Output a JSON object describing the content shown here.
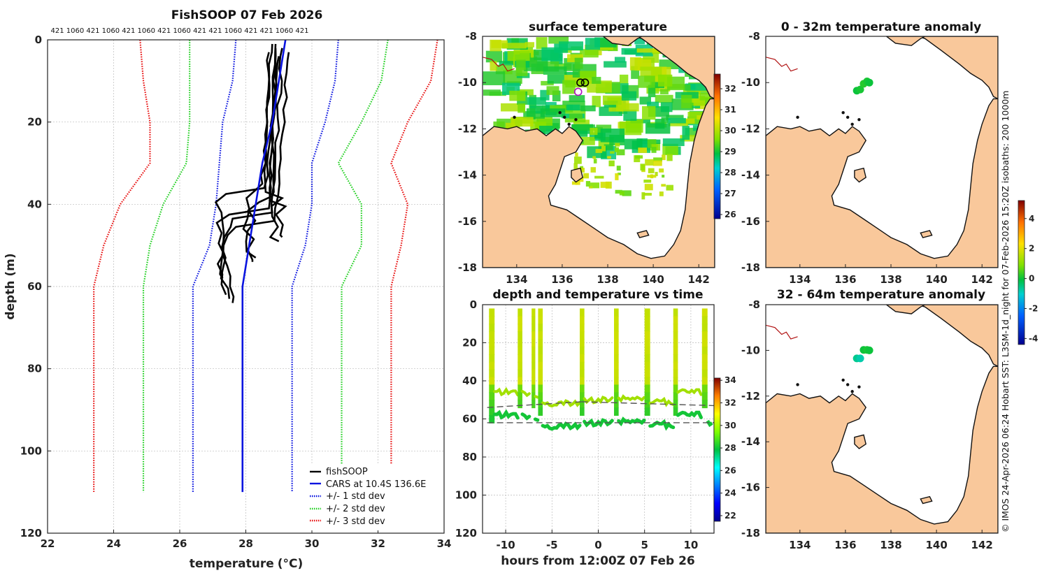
{
  "chart_data": [
    {
      "type": "line",
      "id": "profile",
      "title": "FishSOOP 07 Feb 2026",
      "top_labels": "421 1060 421 1060 421 1060 421 1060 421 421 1060 421 421 1060 421",
      "xlabel": "temperature",
      "xlabel_unit": "(°C)",
      "ylabel": "depth (m)",
      "xlim": [
        22,
        34
      ],
      "ylim": [
        0,
        120
      ],
      "xticks": [
        22,
        24,
        26,
        28,
        30,
        32,
        34
      ],
      "yticks": [
        0,
        20,
        40,
        60,
        80,
        100,
        120
      ],
      "series": [
        {
          "name": "fishSOOP",
          "color": "#000000",
          "style": "solid",
          "profiles": [
            {
              "surface_temp": 28.9,
              "mixed_temp": 28.7,
              "thermo_depth": 41,
              "bottom_temp": 27.2,
              "bottom_depth": 62
            },
            {
              "surface_temp": 29.1,
              "mixed_temp": 28.8,
              "thermo_depth": 42,
              "bottom_temp": 27.3,
              "bottom_depth": 63
            },
            {
              "surface_temp": 29.3,
              "mixed_temp": 28.9,
              "thermo_depth": 44,
              "bottom_temp": 27.4,
              "bottom_depth": 64
            },
            {
              "surface_temp": 29.0,
              "mixed_temp": 28.6,
              "thermo_depth": 36,
              "bottom_temp": 27.1,
              "bottom_depth": 58
            },
            {
              "surface_temp": 28.8,
              "mixed_temp": 28.5,
              "thermo_depth": 35,
              "bottom_temp": 28.0,
              "bottom_depth": 54
            },
            {
              "surface_temp": 28.9,
              "mixed_temp": 28.8,
              "thermo_depth": 38,
              "bottom_temp": 28.1,
              "bottom_depth": 53
            },
            {
              "surface_temp": 28.7,
              "mixed_temp": 28.6,
              "thermo_depth": 37,
              "bottom_temp": 28.8,
              "bottom_depth": 49
            },
            {
              "surface_temp": 29.0,
              "mixed_temp": 28.7,
              "thermo_depth": 39,
              "bottom_temp": 28.9,
              "bottom_depth": 48
            }
          ]
        },
        {
          "name": "CARS at 10.4S 136.6E",
          "color": "#0a14e0",
          "style": "solid",
          "x": [
            29.2,
            29.0,
            28.8,
            28.5,
            28.3,
            28.1,
            27.9,
            27.9
          ],
          "y": [
            0,
            10,
            20,
            30,
            40,
            50,
            60,
            110
          ]
        },
        {
          "name": "+/- 1 std dev",
          "color": "#0a14e0",
          "style": "dotted",
          "x_low": [
            27.7,
            27.6,
            27.3,
            27.2,
            27.1,
            26.9,
            26.4,
            26.4
          ],
          "x_high": [
            30.8,
            30.7,
            30.4,
            30.0,
            30.0,
            29.8,
            29.4,
            29.4
          ],
          "y": [
            0,
            10,
            20,
            30,
            40,
            50,
            60,
            110
          ]
        },
        {
          "name": "+/- 2 std dev",
          "color": "#22d022",
          "style": "dotted",
          "x_low": [
            26.3,
            26.3,
            26.3,
            26.2,
            25.5,
            25.1,
            24.9,
            24.9
          ],
          "x_high": [
            32.3,
            32.1,
            31.5,
            30.8,
            31.5,
            31.5,
            30.9,
            30.9
          ],
          "y": [
            0,
            10,
            20,
            30,
            40,
            50,
            60,
            110
          ]
        },
        {
          "name": "+/- 3 std dev",
          "color": "#e81010",
          "style": "dotted",
          "x_low": [
            24.8,
            24.9,
            25.1,
            25.1,
            24.2,
            23.7,
            23.4,
            23.4
          ],
          "x_high": [
            33.8,
            33.6,
            32.9,
            32.4,
            32.9,
            32.7,
            32.4,
            32.4
          ],
          "y": [
            0,
            10,
            20,
            30,
            40,
            50,
            60,
            110
          ]
        }
      ]
    },
    {
      "type": "heatmap",
      "id": "sst_map",
      "title": "surface temperature",
      "xlim": [
        132.5,
        142.7
      ],
      "ylim": [
        -18,
        -8
      ],
      "xticks": [
        134,
        136,
        138,
        140,
        142
      ],
      "yticks": [
        -8,
        -10,
        -12,
        -14,
        -16,
        -18
      ],
      "colorbar_ticks": [
        26,
        27,
        28,
        29,
        30,
        31,
        32
      ],
      "colorbar_range": [
        25.8,
        32.7
      ],
      "markers": [
        {
          "lon": 136.7,
          "lat": -10.4,
          "color": "#b010c0"
        },
        {
          "lon": 136.8,
          "lat": -10.0,
          "color": "#000000"
        },
        {
          "lon": 137.0,
          "lat": -10.0,
          "color": "#000000"
        }
      ]
    },
    {
      "type": "scatter",
      "id": "anom_0_32",
      "title": "0 - 32m temperature anomaly",
      "xlim": [
        132.5,
        142.7
      ],
      "ylim": [
        -18,
        -8
      ],
      "xticks": [
        134,
        136,
        138,
        140,
        142
      ],
      "yticks": [
        -8,
        -10,
        -12,
        -14,
        -16,
        -18
      ],
      "points": [
        {
          "lon": 136.5,
          "lat": -10.35,
          "value": 0.0
        },
        {
          "lon": 136.65,
          "lat": -10.3,
          "value": 0.1
        },
        {
          "lon": 136.8,
          "lat": -10.05,
          "value": 0.2
        },
        {
          "lon": 136.95,
          "lat": -9.95,
          "value": 0.1
        },
        {
          "lon": 137.05,
          "lat": -10.0,
          "value": 0.0
        }
      ]
    },
    {
      "type": "scatter",
      "id": "anom_32_64",
      "title": "32 - 64m temperature anomaly",
      "xlim": [
        132.5,
        142.7
      ],
      "ylim": [
        -18,
        -8
      ],
      "xticks": [
        134,
        136,
        138,
        140,
        142
      ],
      "yticks": [
        -8,
        -10,
        -12,
        -14,
        -16,
        -18
      ],
      "points": [
        {
          "lon": 136.5,
          "lat": -10.35,
          "value": -0.6
        },
        {
          "lon": 136.65,
          "lat": -10.35,
          "value": -0.8
        },
        {
          "lon": 136.8,
          "lat": -9.98,
          "value": 0.0
        },
        {
          "lon": 136.95,
          "lat": -9.98,
          "value": 0.1
        },
        {
          "lon": 137.05,
          "lat": -10.0,
          "value": 0.0
        }
      ]
    },
    {
      "type": "line",
      "id": "depth_time",
      "title": "depth and temperature vs time",
      "xlabel": "hours from 12:00Z 07 Feb 26",
      "xlim": [
        -12.5,
        12.5
      ],
      "ylim": [
        0,
        120
      ],
      "xticks": [
        -10,
        -5,
        0,
        5,
        10
      ],
      "yticks": [
        0,
        20,
        40,
        60,
        80,
        100,
        120
      ],
      "colorbar_ticks": [
        22,
        24,
        26,
        28,
        30,
        32,
        34
      ],
      "colorbar_range": [
        21.5,
        34.2
      ],
      "casts": [
        {
          "start": -11.8,
          "end": -11.2,
          "bottom_depth": 60
        },
        {
          "start": -8.7,
          "end": -8.2,
          "bottom_depth": 52
        },
        {
          "start": -7.2,
          "end": -6.8,
          "bottom_depth": 53
        },
        {
          "start": -6.5,
          "end": -6.0,
          "bottom_depth": 55
        },
        {
          "start": -2.0,
          "end": -1.5,
          "bottom_depth": 58
        },
        {
          "start": 1.7,
          "end": 2.2,
          "bottom_depth": 56
        },
        {
          "start": 5.0,
          "end": 5.6,
          "bottom_depth": 55
        },
        {
          "start": 8.1,
          "end": 8.6,
          "bottom_depth": 57
        },
        {
          "start": 11.2,
          "end": 11.8,
          "bottom_depth": 52
        }
      ],
      "reference_lines": [
        {
          "x": [
            -12.0,
            -1.8
          ],
          "y": [
            54,
            51
          ]
        },
        {
          "x": [
            -1.8,
            12.5
          ],
          "y": [
            51,
            53
          ]
        },
        {
          "x": [
            -12.0,
            6.0
          ],
          "y": [
            62,
            62
          ]
        },
        {
          "x": [
            6.0,
            12.5
          ],
          "y": [
            62,
            62
          ]
        }
      ]
    },
    {
      "type": "heatmap",
      "id": "anom_colorbar",
      "colorbar_ticks": [
        -4,
        -2,
        0,
        2,
        4
      ],
      "colorbar_range": [
        -4.4,
        5.2
      ]
    }
  ],
  "legend": {
    "items": [
      "fishSOOP",
      "CARS at 10.4S 136.6E",
      "+/- 1 std dev",
      "+/- 2 std dev",
      "+/- 3 std dev"
    ]
  },
  "credit": "© IMOS 24-Apr-2026 06:24 Hobart SST: L3SM-1d_night for 07-Feb-2026 15:20Z isobaths: 200  1000m"
}
